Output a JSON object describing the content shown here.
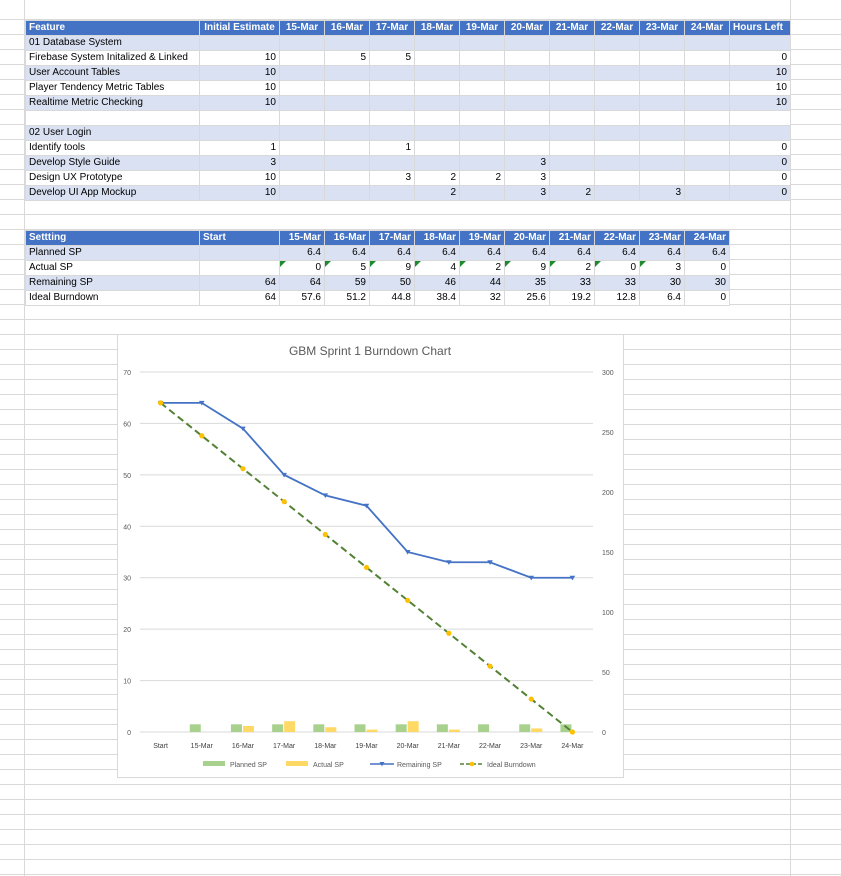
{
  "feature_table": {
    "headers": [
      "Feature",
      "Initial Estimate",
      "15-Mar",
      "16-Mar",
      "17-Mar",
      "18-Mar",
      "19-Mar",
      "20-Mar",
      "21-Mar",
      "22-Mar",
      "23-Mar",
      "24-Mar",
      "Hours Left"
    ],
    "rows": [
      {
        "label": "01 Database System",
        "group": true,
        "cells": [
          "",
          "",
          "",
          "",
          "",
          "",
          "",
          "",
          "",
          "",
          "",
          ""
        ]
      },
      {
        "label": "Firebase System Initalized & Linked",
        "cells": [
          "10",
          "",
          "5",
          "5",
          "",
          "",
          "",
          "",
          "",
          "",
          "",
          "0"
        ]
      },
      {
        "label": "User Account Tables",
        "cells": [
          "10",
          "",
          "",
          "",
          "",
          "",
          "",
          "",
          "",
          "",
          "",
          "10"
        ]
      },
      {
        "label": "Player Tendency Metric Tables",
        "cells": [
          "10",
          "",
          "",
          "",
          "",
          "",
          "",
          "",
          "",
          "",
          "",
          "10"
        ]
      },
      {
        "label": "Realtime Metric Checking",
        "cells": [
          "10",
          "",
          "",
          "",
          "",
          "",
          "",
          "",
          "",
          "",
          "",
          "10"
        ]
      },
      {
        "label": "",
        "blank": true,
        "cells": [
          "",
          "",
          "",
          "",
          "",
          "",
          "",
          "",
          "",
          "",
          "",
          ""
        ]
      },
      {
        "label": "02 User Login",
        "group": true,
        "cells": [
          "",
          "",
          "",
          "",
          "",
          "",
          "",
          "",
          "",
          "",
          "",
          ""
        ]
      },
      {
        "label": "Identify tools",
        "cells": [
          "1",
          "",
          "",
          "1",
          "",
          "",
          "",
          "",
          "",
          "",
          "",
          "0"
        ]
      },
      {
        "label": "Develop Style Guide",
        "cells": [
          "3",
          "",
          "",
          "",
          "",
          "",
          "3",
          "",
          "",
          "",
          "",
          "0"
        ]
      },
      {
        "label": "Design UX Prototype",
        "cells": [
          "10",
          "",
          "",
          "3",
          "2",
          "2",
          "3",
          "",
          "",
          "",
          "",
          "0"
        ]
      },
      {
        "label": "Develop UI App Mockup",
        "cells": [
          "10",
          "",
          "",
          "",
          "2",
          "",
          "3",
          "2",
          "",
          "3",
          "",
          "0"
        ]
      }
    ]
  },
  "settings_table": {
    "headers": [
      "Settting",
      "Start",
      "15-Mar",
      "16-Mar",
      "17-Mar",
      "18-Mar",
      "19-Mar",
      "20-Mar",
      "21-Mar",
      "22-Mar",
      "23-Mar",
      "24-Mar"
    ],
    "rows": [
      {
        "label": "Planned SP",
        "cells": [
          "",
          "6.4",
          "6.4",
          "6.4",
          "6.4",
          "6.4",
          "6.4",
          "6.4",
          "6.4",
          "6.4",
          "6.4"
        ]
      },
      {
        "label": "Actual SP",
        "flagged": true,
        "cells": [
          "",
          "0",
          "5",
          "9",
          "4",
          "2",
          "9",
          "2",
          "0",
          "3",
          "0"
        ]
      },
      {
        "label": "Remaining SP",
        "cells": [
          "64",
          "64",
          "59",
          "50",
          "46",
          "44",
          "35",
          "33",
          "33",
          "30",
          "30"
        ]
      },
      {
        "label": "Ideal Burndown",
        "cells": [
          "64",
          "57.6",
          "51.2",
          "44.8",
          "38.4",
          "32",
          "25.6",
          "19.2",
          "12.8",
          "6.4",
          "0"
        ]
      }
    ]
  },
  "chart_data": {
    "type": "line",
    "title": "GBM Sprint 1 Burndown Chart",
    "categories": [
      "Start",
      "15-Mar",
      "16-Mar",
      "17-Mar",
      "18-Mar",
      "19-Mar",
      "20-Mar",
      "21-Mar",
      "22-Mar",
      "23-Mar",
      "24-Mar"
    ],
    "y_left": {
      "min": 0,
      "max": 70,
      "ticks": [
        "0",
        "10",
        "20",
        "30",
        "40",
        "50",
        "60",
        "70"
      ]
    },
    "y_right": {
      "min": 0,
      "max": 300,
      "ticks": [
        "0",
        "50",
        "100",
        "150",
        "200",
        "250",
        "300"
      ]
    },
    "series": [
      {
        "name": "Planned SP",
        "type": "bar",
        "axis": "right",
        "color": "#a9d18e",
        "values": [
          0,
          6.4,
          6.4,
          6.4,
          6.4,
          6.4,
          6.4,
          6.4,
          6.4,
          6.4,
          6.4
        ]
      },
      {
        "name": "Actual SP",
        "type": "bar",
        "axis": "right",
        "color": "#ffd966",
        "values": [
          0,
          0,
          5,
          9,
          4,
          2,
          9,
          2,
          0,
          3,
          0
        ]
      },
      {
        "name": "Remaining SP",
        "type": "line",
        "axis": "left",
        "color": "#4472c4",
        "values": [
          64,
          64,
          59,
          50,
          46,
          44,
          35,
          33,
          33,
          30,
          30
        ]
      },
      {
        "name": "Ideal Burndown",
        "type": "line",
        "axis": "left",
        "dashed": true,
        "color": "#548235",
        "marker_color": "#ffc000",
        "values": [
          64,
          57.6,
          51.2,
          44.8,
          38.4,
          32,
          25.6,
          19.2,
          12.8,
          6.4,
          0
        ]
      }
    ],
    "legend_position": "bottom",
    "grid": true
  }
}
